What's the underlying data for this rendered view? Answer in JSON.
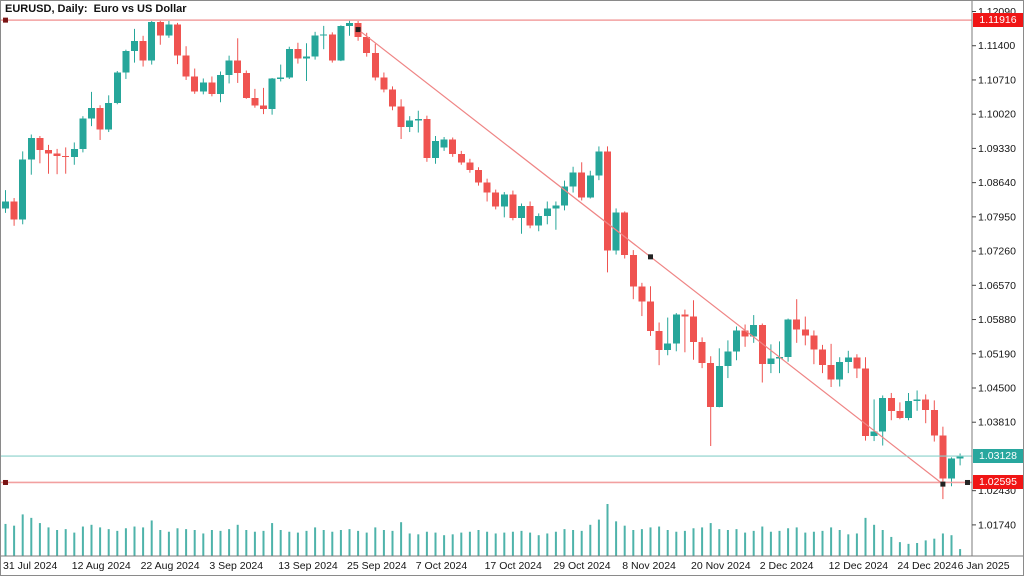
{
  "window": {
    "title": "EURUSD, Daily:  Euro vs US Dollar",
    "symbol": "EURUSD",
    "period": "Daily",
    "description": "Euro vs US Dollar"
  },
  "chart_data": {
    "type": "candlestick",
    "title": "EURUSD, Daily: Euro vs US Dollar",
    "grid": false,
    "legend_position": "none",
    "y_axis_side": "right",
    "ylim": [
      1.0108,
      1.123
    ],
    "colors": {
      "bull": "#26a69a",
      "bear": "#ef5350",
      "volume": "#4eb3aa",
      "axis_line": "#7b7b7b",
      "axis_text": "#151515"
    },
    "y_ticks": [
      "1.12090",
      "1.11400",
      "1.10710",
      "1.10020",
      "1.09330",
      "1.08640",
      "1.07950",
      "1.07260",
      "1.06570",
      "1.05880",
      "1.05190",
      "1.04500",
      "1.03810",
      "1.02430",
      "1.01740"
    ],
    "x_ticks": [
      {
        "label": "31 Jul 2024",
        "index": 0
      },
      {
        "label": "12 Aug 2024",
        "index": 8
      },
      {
        "label": "22 Aug 2024",
        "index": 16
      },
      {
        "label": "3 Sep 2024",
        "index": 24
      },
      {
        "label": "13 Sep 2024",
        "index": 32
      },
      {
        "label": "25 Sep 2024",
        "index": 40
      },
      {
        "label": "7 Oct 2024",
        "index": 48
      },
      {
        "label": "17 Oct 2024",
        "index": 56
      },
      {
        "label": "29 Oct 2024",
        "index": 64
      },
      {
        "label": "8 Nov 2024",
        "index": 72
      },
      {
        "label": "20 Nov 2024",
        "index": 80
      },
      {
        "label": "2 Dec 2024",
        "index": 88
      },
      {
        "label": "12 Dec 2024",
        "index": 96
      },
      {
        "label": "24 Dec 2024",
        "index": 104
      },
      {
        "label": "6 Jan 2025",
        "index": 111
      }
    ],
    "columns": [
      "date",
      "open",
      "high",
      "low",
      "close",
      "tick_volume"
    ],
    "rows": [
      [
        "31 Jul 2024",
        1.0812,
        1.0849,
        1.0803,
        1.0826,
        37000
      ],
      [
        "1 Aug 2024",
        1.0826,
        1.0833,
        1.0777,
        1.079,
        35000
      ],
      [
        "2 Aug 2024",
        1.079,
        1.0927,
        1.078,
        1.0911,
        48000
      ],
      [
        "5 Aug 2024",
        1.0911,
        1.0961,
        1.088,
        1.0954,
        44000
      ],
      [
        "6 Aug 2024",
        1.0954,
        1.0958,
        1.0903,
        1.093,
        38000
      ],
      [
        "7 Aug 2024",
        1.093,
        1.094,
        1.0882,
        1.0923,
        33000
      ],
      [
        "8 Aug 2024",
        1.0923,
        1.0932,
        1.0881,
        1.0918,
        30000
      ],
      [
        "9 Aug 2024",
        1.0918,
        1.0935,
        1.0882,
        1.0916,
        31000
      ],
      [
        "12 Aug 2024",
        1.0916,
        1.0945,
        1.09,
        1.0932,
        27000
      ],
      [
        "13 Aug 2024",
        1.0932,
        1.0998,
        1.0925,
        1.0993,
        34000
      ],
      [
        "14 Aug 2024",
        1.0993,
        1.1047,
        1.0978,
        1.1014,
        36000
      ],
      [
        "15 Aug 2024",
        1.1014,
        1.102,
        1.095,
        1.0971,
        33000
      ],
      [
        "16 Aug 2024",
        1.0971,
        1.104,
        1.0966,
        1.1025,
        31000
      ],
      [
        "19 Aug 2024",
        1.1025,
        1.1089,
        1.1022,
        1.1086,
        29000
      ],
      [
        "20 Aug 2024",
        1.1086,
        1.1132,
        1.1073,
        1.1129,
        32000
      ],
      [
        "21 Aug 2024",
        1.1129,
        1.1174,
        1.1106,
        1.115,
        34000
      ],
      [
        "22 Aug 2024",
        1.115,
        1.116,
        1.1098,
        1.111,
        33000
      ],
      [
        "23 Aug 2024",
        1.111,
        1.119,
        1.1102,
        1.1188,
        41000
      ],
      [
        "26 Aug 2024",
        1.1188,
        1.1192,
        1.1142,
        1.1161,
        30000
      ],
      [
        "27 Aug 2024",
        1.1161,
        1.119,
        1.1156,
        1.1183,
        28000
      ],
      [
        "28 Aug 2024",
        1.1183,
        1.1186,
        1.1103,
        1.112,
        32000
      ],
      [
        "29 Aug 2024",
        1.112,
        1.1139,
        1.1071,
        1.1078,
        31000
      ],
      [
        "30 Aug 2024",
        1.1078,
        1.1094,
        1.1043,
        1.1048,
        30000
      ],
      [
        "2 Sep 2024",
        1.1048,
        1.1074,
        1.1042,
        1.1066,
        26000
      ],
      [
        "3 Sep 2024",
        1.1066,
        1.1078,
        1.1038,
        1.1043,
        30000
      ],
      [
        "4 Sep 2024",
        1.1043,
        1.1088,
        1.1026,
        1.1081,
        29000
      ],
      [
        "5 Sep 2024",
        1.1081,
        1.112,
        1.1064,
        1.111,
        31000
      ],
      [
        "6 Sep 2024",
        1.111,
        1.1155,
        1.1065,
        1.1085,
        36000
      ],
      [
        "9 Sep 2024",
        1.1085,
        1.109,
        1.1033,
        1.1035,
        30000
      ],
      [
        "10 Sep 2024",
        1.1035,
        1.1053,
        1.1015,
        1.102,
        28000
      ],
      [
        "11 Sep 2024",
        1.102,
        1.1055,
        1.1002,
        1.1012,
        29000
      ],
      [
        "12 Sep 2024",
        1.1012,
        1.1075,
        1.1001,
        1.1074,
        38000
      ],
      [
        "13 Sep 2024",
        1.1074,
        1.1102,
        1.1068,
        1.1076,
        30000
      ],
      [
        "16 Sep 2024",
        1.1076,
        1.1138,
        1.1073,
        1.1133,
        28000
      ],
      [
        "17 Sep 2024",
        1.1133,
        1.1146,
        1.1104,
        1.1114,
        27000
      ],
      [
        "18 Sep 2024",
        1.1114,
        1.1145,
        1.1069,
        1.1118,
        29000
      ],
      [
        "19 Sep 2024",
        1.1118,
        1.1168,
        1.1112,
        1.1161,
        33000
      ],
      [
        "20 Sep 2024",
        1.1161,
        1.118,
        1.1133,
        1.1163,
        30000
      ],
      [
        "23 Sep 2024",
        1.1163,
        1.1167,
        1.1106,
        1.111,
        28000
      ],
      [
        "24 Sep 2024",
        1.111,
        1.1181,
        1.1109,
        1.118,
        30000
      ],
      [
        "25 Sep 2024",
        1.118,
        1.1192,
        1.116,
        1.1186,
        31000
      ],
      [
        "26 Sep 2024",
        1.1186,
        1.119,
        1.115,
        1.1158,
        29000
      ],
      [
        "27 Sep 2024",
        1.1158,
        1.1166,
        1.1118,
        1.1125,
        27000
      ],
      [
        "30 Sep 2024",
        1.1125,
        1.1144,
        1.107,
        1.1076,
        33000
      ],
      [
        "1 Oct 2024",
        1.1076,
        1.1086,
        1.1046,
        1.1052,
        30000
      ],
      [
        "2 Oct 2024",
        1.1052,
        1.1058,
        1.101,
        1.1017,
        29000
      ],
      [
        "3 Oct 2024",
        1.1017,
        1.1032,
        1.0952,
        1.0976,
        39000
      ],
      [
        "4 Oct 2024",
        1.0976,
        1.0998,
        1.0966,
        1.0989,
        26000
      ],
      [
        "7 Oct 2024",
        1.0989,
        1.1009,
        1.0965,
        1.0992,
        25000
      ],
      [
        "8 Oct 2024",
        1.0992,
        1.0999,
        1.0906,
        1.0914,
        28000
      ],
      [
        "9 Oct 2024",
        1.0914,
        1.0958,
        1.0902,
        1.0948,
        27000
      ],
      [
        "10 Oct 2024",
        1.0935,
        1.0956,
        1.0928,
        1.0951,
        24000
      ],
      [
        "11 Oct 2024",
        1.0951,
        1.0955,
        1.0916,
        1.0922,
        25000
      ],
      [
        "14 Oct 2024",
        1.0922,
        1.0928,
        1.09,
        1.0905,
        27000
      ],
      [
        "15 Oct 2024",
        1.0905,
        1.0912,
        1.0884,
        1.0889,
        28000
      ],
      [
        "16 Oct 2024",
        1.0889,
        1.0895,
        1.0858,
        1.0864,
        30000
      ],
      [
        "17 Oct 2024",
        1.0864,
        1.0872,
        1.0826,
        1.0844,
        28000
      ],
      [
        "18 Oct 2024",
        1.0844,
        1.085,
        1.081,
        1.0816,
        26000
      ],
      [
        "21 Oct 2024",
        1.0816,
        1.0845,
        1.0794,
        1.084,
        27000
      ],
      [
        "22 Oct 2024",
        1.084,
        1.0848,
        1.0788,
        1.0793,
        28000
      ],
      [
        "23 Oct 2024",
        1.0793,
        1.0822,
        1.0761,
        1.0817,
        29000
      ],
      [
        "24 Oct 2024",
        1.0817,
        1.0826,
        1.0772,
        1.0778,
        27000
      ],
      [
        "25 Oct 2024",
        1.0778,
        1.0802,
        1.0766,
        1.0797,
        24000
      ],
      [
        "28 Oct 2024",
        1.0797,
        1.0826,
        1.078,
        1.0812,
        26000
      ],
      [
        "29 Oct 2024",
        1.0812,
        1.0826,
        1.0769,
        1.0818,
        28000
      ],
      [
        "30 Oct 2024",
        1.0818,
        1.0868,
        1.0808,
        1.0856,
        31000
      ],
      [
        "31 Oct 2024",
        1.0856,
        1.0896,
        1.0844,
        1.0884,
        30000
      ],
      [
        "1 Nov 2024",
        1.0884,
        1.0905,
        1.0828,
        1.0834,
        29000
      ],
      [
        "4 Nov 2024",
        1.0834,
        1.0888,
        1.0832,
        1.0878,
        36000
      ],
      [
        "5 Nov 2024",
        1.0878,
        1.0937,
        1.0869,
        1.0927,
        42000
      ],
      [
        "6 Nov 2024",
        1.0927,
        1.0937,
        1.0683,
        1.0727,
        60000
      ],
      [
        "7 Nov 2024",
        1.0727,
        1.0812,
        1.0719,
        1.0804,
        40000
      ],
      [
        "8 Nov 2024",
        1.0804,
        1.0806,
        1.0711,
        1.0718,
        35000
      ],
      [
        "11 Nov 2024",
        1.0718,
        1.0728,
        1.0629,
        1.0655,
        30000
      ],
      [
        "12 Nov 2024",
        1.0655,
        1.0662,
        1.0595,
        1.0624,
        31000
      ],
      [
        "13 Nov 2024",
        1.0624,
        1.0655,
        1.0555,
        1.0565,
        33000
      ],
      [
        "14 Nov 2024",
        1.0565,
        1.0582,
        1.0496,
        1.0527,
        34000
      ],
      [
        "15 Nov 2024",
        1.0527,
        1.0592,
        1.0516,
        1.054,
        30000
      ],
      [
        "18 Nov 2024",
        1.054,
        1.0601,
        1.0524,
        1.0598,
        28000
      ],
      [
        "19 Nov 2024",
        1.0598,
        1.0608,
        1.0522,
        1.0594,
        29000
      ],
      [
        "20 Nov 2024",
        1.0594,
        1.0627,
        1.0507,
        1.0543,
        32000
      ],
      [
        "21 Nov 2024",
        1.0543,
        1.0552,
        1.049,
        1.05,
        33000
      ],
      [
        "22 Nov 2024",
        1.05,
        1.0514,
        1.0333,
        1.0412,
        38000
      ],
      [
        "25 Nov 2024",
        1.0412,
        1.053,
        1.0411,
        1.0494,
        31000
      ],
      [
        "26 Nov 2024",
        1.0494,
        1.0546,
        1.047,
        1.0524,
        30000
      ],
      [
        "27 Nov 2024",
        1.0524,
        1.0574,
        1.0506,
        1.0566,
        31000
      ],
      [
        "28 Nov 2024",
        1.0566,
        1.0578,
        1.0533,
        1.0554,
        27000
      ],
      [
        "29 Nov 2024",
        1.0554,
        1.0597,
        1.0541,
        1.0577,
        29000
      ],
      [
        "2 Dec 2024",
        1.0577,
        1.058,
        1.0461,
        1.0498,
        34000
      ],
      [
        "3 Dec 2024",
        1.0498,
        1.0538,
        1.048,
        1.0509,
        28000
      ],
      [
        "4 Dec 2024",
        1.0509,
        1.0544,
        1.048,
        1.0512,
        29000
      ],
      [
        "5 Dec 2024",
        1.0512,
        1.059,
        1.0503,
        1.0588,
        32000
      ],
      [
        "6 Dec 2024",
        1.0588,
        1.0629,
        1.0541,
        1.0568,
        33000
      ],
      [
        "9 Dec 2024",
        1.0568,
        1.0594,
        1.0536,
        1.0556,
        27000
      ],
      [
        "10 Dec 2024",
        1.0556,
        1.0566,
        1.0498,
        1.0528,
        28000
      ],
      [
        "11 Dec 2024",
        1.0528,
        1.0537,
        1.048,
        1.0496,
        29000
      ],
      [
        "12 Dec 2024",
        1.0496,
        1.0539,
        1.0452,
        1.0467,
        33000
      ],
      [
        "13 Dec 2024",
        1.0467,
        1.0512,
        1.0453,
        1.0502,
        30000
      ],
      [
        "16 Dec 2024",
        1.0502,
        1.0525,
        1.048,
        1.0511,
        25000
      ],
      [
        "17 Dec 2024",
        1.0511,
        1.0518,
        1.047,
        1.0489,
        26000
      ],
      [
        "18 Dec 2024",
        1.0489,
        1.0512,
        1.0344,
        1.0353,
        44000
      ],
      [
        "19 Dec 2024",
        1.0353,
        1.0427,
        1.0343,
        1.0362,
        36000
      ],
      [
        "20 Dec 2024",
        1.0362,
        1.0435,
        1.0334,
        1.043,
        30000
      ],
      [
        "23 Dec 2024",
        1.043,
        1.044,
        1.0385,
        1.0404,
        22000
      ],
      [
        "24 Dec 2024",
        1.0404,
        1.0421,
        1.0387,
        1.039,
        16000
      ],
      [
        "26 Dec 2024",
        1.039,
        1.044,
        1.0385,
        1.0424,
        14000
      ],
      [
        "27 Dec 2024",
        1.0424,
        1.0445,
        1.0404,
        1.0427,
        15000
      ],
      [
        "30 Dec 2024",
        1.0427,
        1.0437,
        1.0379,
        1.0406,
        18000
      ],
      [
        "31 Dec 2024",
        1.0406,
        1.0425,
        1.0342,
        1.0354,
        20000
      ],
      [
        "2 Jan 2025",
        1.0354,
        1.0372,
        1.0226,
        1.0268,
        26000
      ],
      [
        "3 Jan 2025",
        1.0268,
        1.031,
        1.0252,
        1.0308,
        24000
      ],
      [
        "6 Jan 2025",
        1.0308,
        1.0318,
        1.0294,
        1.0313,
        8000
      ]
    ],
    "objects": {
      "horizontal_lines": [
        {
          "name": "resistance-line",
          "price": 1.11916,
          "label": "1.11916",
          "line_color": "#f2a0a0",
          "badge_color": "#f01515"
        },
        {
          "name": "support-line",
          "price": 1.02595,
          "label": "1.02595",
          "line_color": "#f2a0a0",
          "badge_color": "#f01515"
        }
      ],
      "trendline": {
        "name": "descending-trendline",
        "from": {
          "date": "26 Sep 2024",
          "index": 41,
          "price": 1.11726
        },
        "to": {
          "date": "2 Jan 2025",
          "index": 109,
          "price": 1.02562
        },
        "color": "#ef8585"
      },
      "bid_line": {
        "name": "current-bid-line",
        "price": 1.03128,
        "label": "1.03128",
        "line_color": "#8ad1cb",
        "badge_color": "#28a79e"
      }
    }
  }
}
